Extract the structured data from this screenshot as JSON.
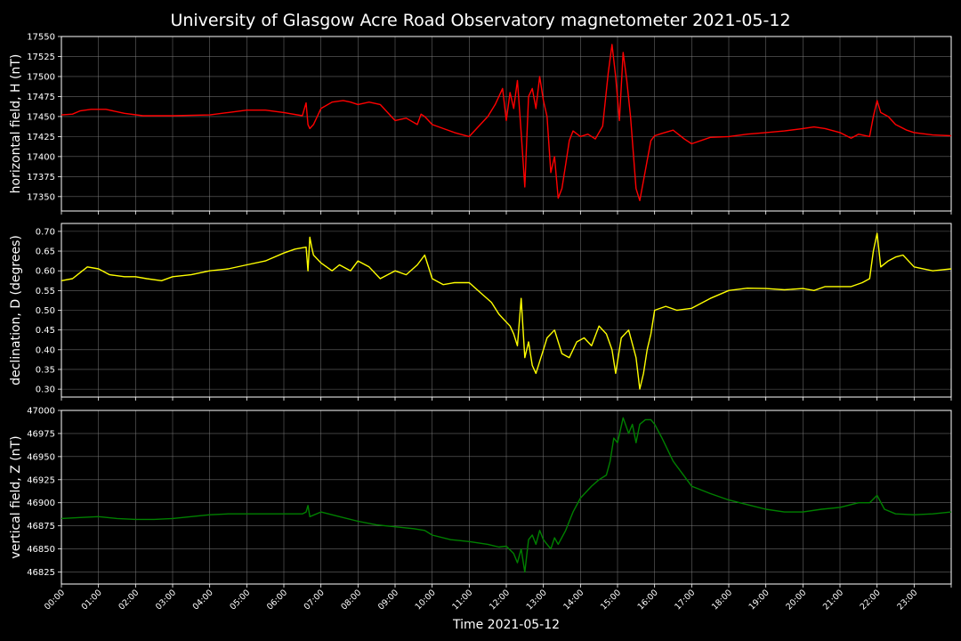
{
  "title": "University of Glasgow Acre Road Observatory magnetometer 2021-05-12",
  "xlabel": "Time 2021-05-12",
  "time_ticks": [
    "00:00",
    "01:00",
    "02:00",
    "03:00",
    "04:00",
    "05:00",
    "06:00",
    "07:00",
    "08:00",
    "09:00",
    "10:00",
    "11:00",
    "12:00",
    "13:00",
    "14:00",
    "15:00",
    "16:00",
    "17:00",
    "18:00",
    "19:00",
    "20:00",
    "21:00",
    "22:00",
    "23:00"
  ],
  "colors": {
    "background": "#000000",
    "H": "#ff0000",
    "D": "#ffff00",
    "Z": "#008000",
    "grid": "#808080",
    "text": "#ffffff"
  },
  "chart_data": [
    {
      "type": "line",
      "ylabel": "horizontal field, H (nT)",
      "color": "#ff0000",
      "xlim": [
        0,
        24
      ],
      "ylim": [
        17332,
        17550
      ],
      "yticks": [
        17350,
        17375,
        17400,
        17425,
        17450,
        17475,
        17500,
        17525,
        17550
      ],
      "grid": true,
      "x_units": "hours since 00:00",
      "series": [
        {
          "x": [
            0,
            0.3,
            0.5,
            0.8,
            1.2,
            1.7,
            2.2,
            3.0,
            4.0,
            4.5,
            5.0,
            5.5,
            6.0,
            6.5,
            6.6,
            6.65,
            6.7,
            6.8,
            7.0,
            7.3,
            7.6,
            7.8,
            8.0,
            8.3,
            8.6,
            9.0,
            9.3,
            9.6,
            9.7,
            9.8,
            10.0,
            10.3,
            10.6,
            11.0,
            11.3,
            11.5,
            11.7,
            11.9,
            12.0,
            12.1,
            12.2,
            12.3,
            12.4,
            12.5,
            12.6,
            12.7,
            12.8,
            12.9,
            13.0,
            13.1,
            13.2,
            13.3,
            13.4,
            13.5,
            13.6,
            13.7,
            13.8,
            14.0,
            14.2,
            14.4,
            14.6,
            14.75,
            14.85,
            14.95,
            15.05,
            15.15,
            15.25,
            15.35,
            15.5,
            15.6,
            15.7,
            15.8,
            15.9,
            16.0,
            16.2,
            16.5,
            16.8,
            17.0,
            17.5,
            18.0,
            18.5,
            19.0,
            19.5,
            20.0,
            20.3,
            20.6,
            21.0,
            21.3,
            21.5,
            21.8,
            21.9,
            22.0,
            22.1,
            22.3,
            22.5,
            22.8,
            23.0,
            23.5,
            24.0
          ],
          "y": [
            17452,
            17453,
            17457,
            17459,
            17459,
            17454,
            17451,
            17451,
            17452,
            17455,
            17458,
            17458,
            17455,
            17451,
            17467,
            17440,
            17435,
            17440,
            17460,
            17468,
            17470,
            17468,
            17465,
            17468,
            17465,
            17445,
            17448,
            17440,
            17453,
            17450,
            17440,
            17435,
            17430,
            17425,
            17440,
            17450,
            17465,
            17485,
            17445,
            17480,
            17460,
            17495,
            17430,
            17362,
            17475,
            17485,
            17460,
            17500,
            17470,
            17450,
            17380,
            17400,
            17348,
            17360,
            17390,
            17420,
            17432,
            17425,
            17428,
            17422,
            17438,
            17505,
            17540,
            17500,
            17445,
            17530,
            17495,
            17450,
            17360,
            17345,
            17370,
            17395,
            17420,
            17426,
            17429,
            17433,
            17422,
            17416,
            17424,
            17425,
            17428,
            17430,
            17432,
            17435,
            17437,
            17435,
            17430,
            17423,
            17428,
            17425,
            17450,
            17470,
            17455,
            17450,
            17440,
            17433,
            17430,
            17427,
            17426
          ]
        }
      ]
    },
    {
      "type": "line",
      "ylabel": "declination, D (degrees)",
      "color": "#ffff00",
      "xlim": [
        0,
        24
      ],
      "ylim": [
        0.28,
        0.72
      ],
      "yticks": [
        0.3,
        0.35,
        0.4,
        0.45,
        0.5,
        0.55,
        0.6,
        0.65,
        0.7
      ],
      "grid": true,
      "x_units": "hours since 00:00",
      "series": [
        {
          "x": [
            0,
            0.3,
            0.5,
            0.7,
            1.0,
            1.3,
            1.7,
            2.0,
            2.3,
            2.7,
            3.0,
            3.5,
            4.0,
            4.5,
            5.0,
            5.5,
            6.0,
            6.3,
            6.6,
            6.65,
            6.7,
            6.75,
            6.8,
            7.0,
            7.3,
            7.5,
            7.8,
            8.0,
            8.3,
            8.6,
            9.0,
            9.3,
            9.6,
            9.8,
            10.0,
            10.3,
            10.6,
            11.0,
            11.3,
            11.6,
            11.8,
            12.0,
            12.1,
            12.2,
            12.3,
            12.4,
            12.5,
            12.6,
            12.7,
            12.8,
            12.9,
            13.0,
            13.1,
            13.3,
            13.5,
            13.7,
            13.9,
            14.1,
            14.3,
            14.5,
            14.7,
            14.85,
            14.95,
            15.1,
            15.3,
            15.5,
            15.6,
            15.7,
            15.8,
            15.9,
            16.0,
            16.3,
            16.6,
            17.0,
            17.5,
            18.0,
            18.5,
            19.0,
            19.5,
            20.0,
            20.3,
            20.6,
            21.0,
            21.3,
            21.6,
            21.8,
            21.9,
            22.0,
            22.1,
            22.3,
            22.5,
            22.7,
            23.0,
            23.5,
            24.0
          ],
          "y": [
            0.575,
            0.58,
            0.595,
            0.61,
            0.605,
            0.59,
            0.585,
            0.585,
            0.58,
            0.575,
            0.585,
            0.59,
            0.6,
            0.605,
            0.615,
            0.625,
            0.645,
            0.655,
            0.66,
            0.6,
            0.685,
            0.66,
            0.64,
            0.62,
            0.6,
            0.615,
            0.6,
            0.625,
            0.61,
            0.58,
            0.6,
            0.59,
            0.615,
            0.64,
            0.58,
            0.565,
            0.57,
            0.57,
            0.545,
            0.52,
            0.49,
            0.47,
            0.46,
            0.44,
            0.41,
            0.53,
            0.38,
            0.42,
            0.36,
            0.34,
            0.37,
            0.4,
            0.43,
            0.45,
            0.39,
            0.38,
            0.42,
            0.43,
            0.41,
            0.46,
            0.44,
            0.4,
            0.34,
            0.43,
            0.45,
            0.38,
            0.3,
            0.34,
            0.4,
            0.44,
            0.5,
            0.51,
            0.5,
            0.505,
            0.53,
            0.55,
            0.556,
            0.555,
            0.552,
            0.555,
            0.55,
            0.56,
            0.56,
            0.56,
            0.57,
            0.58,
            0.65,
            0.695,
            0.61,
            0.625,
            0.635,
            0.64,
            0.61,
            0.6,
            0.605
          ]
        }
      ]
    },
    {
      "type": "line",
      "ylabel": "vertical field, Z (nT)",
      "color": "#008000",
      "xlim": [
        0,
        24
      ],
      "ylim": [
        46812,
        47000
      ],
      "yticks": [
        46825,
        46850,
        46875,
        46900,
        46925,
        46950,
        46975,
        47000
      ],
      "grid": true,
      "x_units": "hours since 00:00",
      "series": [
        {
          "x": [
            0,
            0.5,
            1.0,
            1.5,
            2.0,
            2.5,
            3.0,
            3.5,
            4.0,
            4.5,
            5.0,
            5.5,
            6.0,
            6.5,
            6.6,
            6.65,
            6.7,
            7.0,
            7.5,
            8.0,
            8.5,
            9.0,
            9.5,
            9.8,
            10.0,
            10.5,
            11.0,
            11.5,
            11.8,
            12.0,
            12.2,
            12.3,
            12.4,
            12.5,
            12.6,
            12.7,
            12.8,
            12.9,
            13.0,
            13.1,
            13.2,
            13.3,
            13.4,
            13.6,
            13.8,
            14.0,
            14.3,
            14.5,
            14.7,
            14.8,
            14.9,
            15.0,
            15.15,
            15.3,
            15.4,
            15.5,
            15.6,
            15.75,
            15.9,
            16.0,
            16.2,
            16.5,
            17.0,
            17.5,
            18.0,
            18.5,
            19.0,
            19.5,
            20.0,
            20.5,
            21.0,
            21.5,
            21.8,
            22.0,
            22.2,
            22.5,
            23.0,
            23.5,
            24.0
          ],
          "y": [
            46883,
            46884,
            46885,
            46883,
            46882,
            46882,
            46883,
            46885,
            46887,
            46888,
            46888,
            46888,
            46888,
            46888,
            46890,
            46897,
            46885,
            46890,
            46885,
            46880,
            46876,
            46874,
            46872,
            46870,
            46865,
            46860,
            46858,
            46855,
            46852,
            46853,
            46845,
            46835,
            46850,
            46825,
            46860,
            46865,
            46855,
            46870,
            46860,
            46855,
            46850,
            46862,
            46855,
            46870,
            46890,
            46905,
            46918,
            46925,
            46930,
            46945,
            46970,
            46965,
            46992,
            46975,
            46985,
            46965,
            46985,
            46990,
            46990,
            46985,
            46970,
            46945,
            46918,
            46910,
            46903,
            46898,
            46893,
            46890,
            46890,
            46893,
            46895,
            46900,
            46900,
            46908,
            46893,
            46888,
            46887,
            46888,
            46890
          ]
        }
      ]
    }
  ]
}
